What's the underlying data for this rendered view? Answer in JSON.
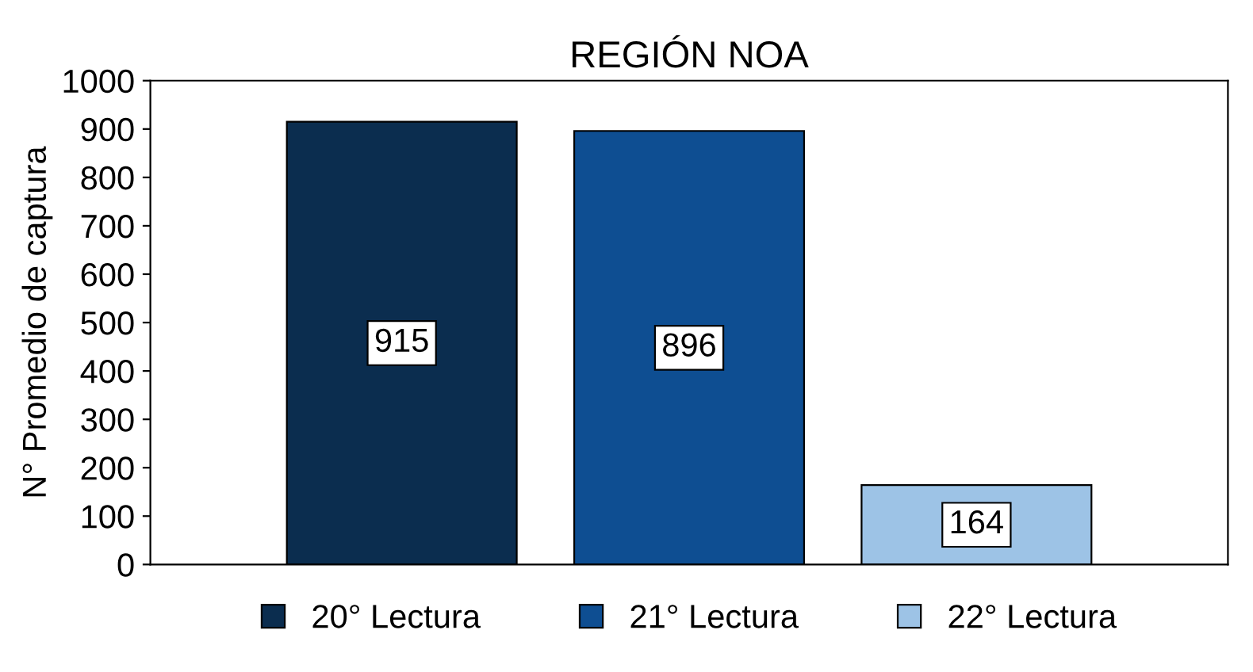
{
  "chart_data": {
    "type": "bar",
    "title": "REGIÓN NOA",
    "ylabel": "N° Promedio de captura",
    "categories": [
      null
    ],
    "series": [
      {
        "name": "20° Lectura",
        "color": "#0b2d4f",
        "values": [
          915
        ]
      },
      {
        "name": "21° Lectura",
        "color": "#0e4e92",
        "values": [
          896
        ]
      },
      {
        "name": "22° Lectura",
        "color": "#9dc3e6",
        "values": [
          164
        ]
      }
    ],
    "ylim": [
      0,
      1000
    ],
    "yticks": [
      0,
      100,
      200,
      300,
      400,
      500,
      600,
      700,
      800,
      900,
      1000
    ],
    "grid": false,
    "legend": "bottom",
    "data_labels": true
  }
}
